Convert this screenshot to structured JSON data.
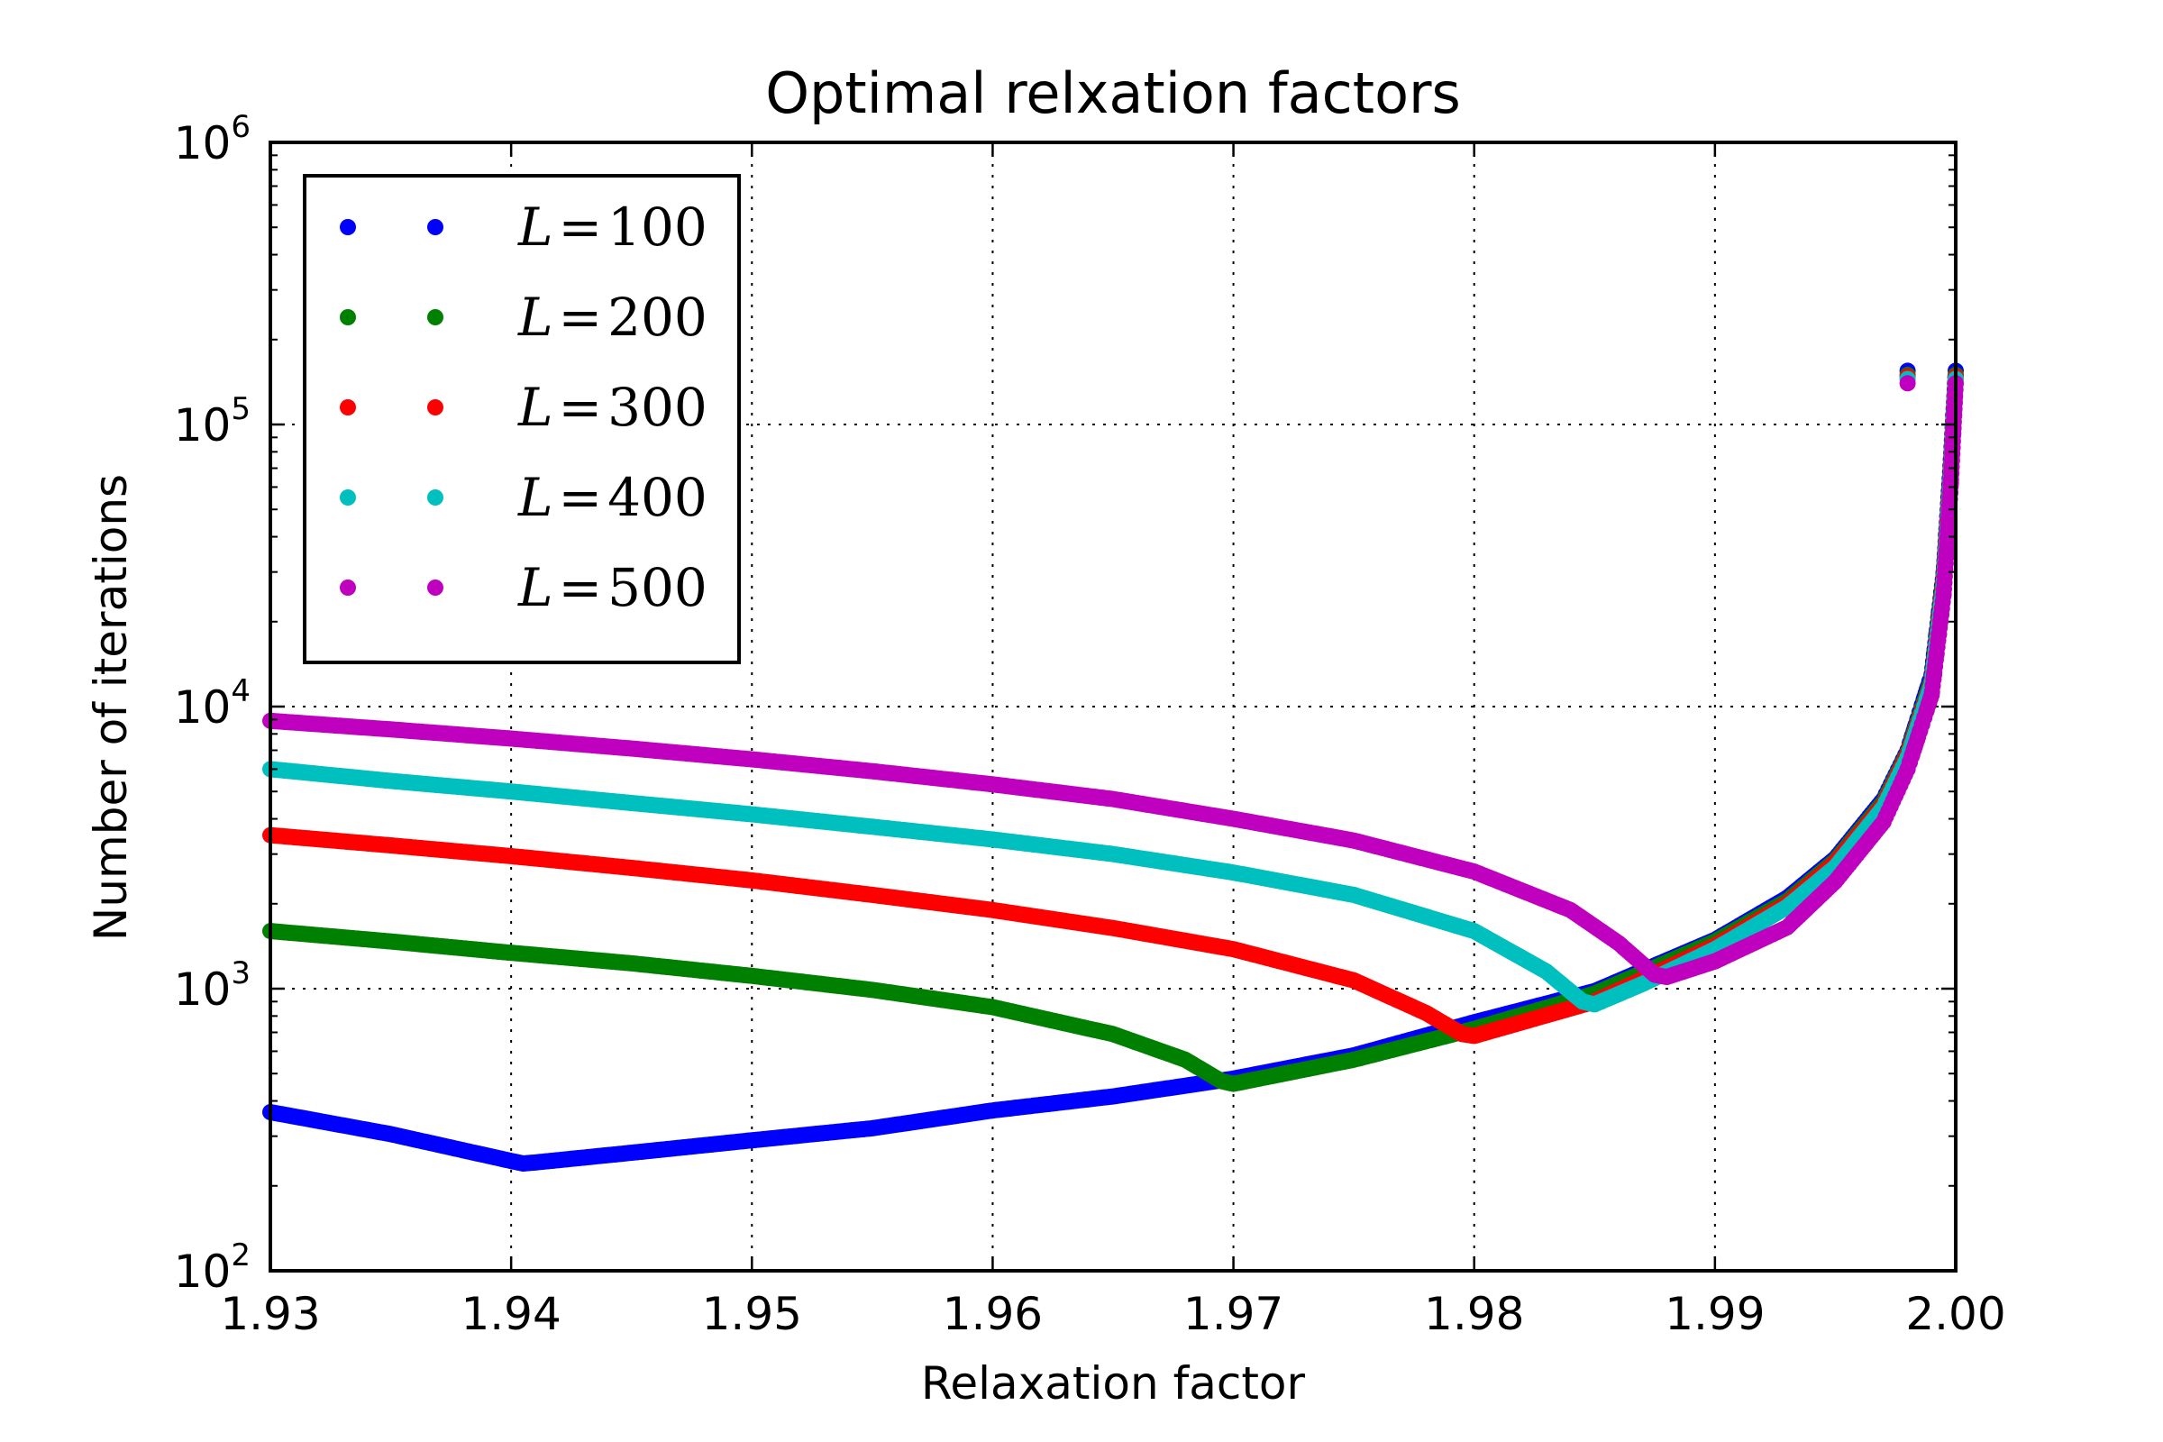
{
  "chart_data": {
    "type": "scatter",
    "title": "Optimal relxation factors",
    "xlabel": "Relaxation factor",
    "ylabel": "Number of iterations",
    "xlim": [
      1.93,
      2.0
    ],
    "ylim": [
      100,
      1000000
    ],
    "yscale": "log",
    "grid": true,
    "legend_position": "upper-left",
    "xticks": [
      1.93,
      1.94,
      1.95,
      1.96,
      1.97,
      1.98,
      1.99,
      2.0
    ],
    "xtick_labels": [
      "1.93",
      "1.94",
      "1.95",
      "1.96",
      "1.97",
      "1.98",
      "1.99",
      "2.00"
    ],
    "yticks": [
      100,
      1000,
      10000,
      100000,
      1000000
    ],
    "ytick_labels": [
      {
        "base": "10",
        "exp": "2"
      },
      {
        "base": "10",
        "exp": "3"
      },
      {
        "base": "10",
        "exp": "4"
      },
      {
        "base": "10",
        "exp": "5"
      },
      {
        "base": "10",
        "exp": "6"
      }
    ],
    "series": [
      {
        "name": "L = 100",
        "legend_var": "L",
        "legend_val": "100",
        "color": "#0000ff",
        "x": [
          1.93,
          1.935,
          1.94,
          1.9405,
          1.941,
          1.945,
          1.95,
          1.955,
          1.96,
          1.965,
          1.97,
          1.975,
          1.98,
          1.985,
          1.99,
          1.993,
          1.995,
          1.997,
          1.998,
          1.999,
          1.9995,
          1.9998,
          2.0
        ],
        "y": [
          365,
          305,
          245,
          240,
          242,
          262,
          290,
          320,
          370,
          415,
          480,
          580,
          760,
          980,
          1490,
          2100,
          2900,
          4700,
          7000,
          13000,
          30000,
          75000,
          155000
        ]
      },
      {
        "name": "L = 200",
        "legend_var": "L",
        "legend_val": "200",
        "color": "#008000",
        "x": [
          1.93,
          1.935,
          1.94,
          1.945,
          1.95,
          1.955,
          1.96,
          1.965,
          1.968,
          1.9695,
          1.97,
          1.975,
          1.98,
          1.985,
          1.99,
          1.993,
          1.995,
          1.997,
          1.998,
          1.999,
          1.9995,
          1.9998,
          2.0
        ],
        "y": [
          1600,
          1470,
          1340,
          1230,
          1110,
          990,
          860,
          690,
          560,
          470,
          460,
          560,
          720,
          960,
          1470,
          2050,
          2850,
          4600,
          6900,
          12500,
          29000,
          70000,
          150000
        ]
      },
      {
        "name": "L = 300",
        "legend_var": "L",
        "legend_val": "300",
        "color": "#ff0000",
        "x": [
          1.93,
          1.935,
          1.94,
          1.945,
          1.95,
          1.955,
          1.96,
          1.965,
          1.97,
          1.975,
          1.978,
          1.9795,
          1.98,
          1.985,
          1.99,
          1.993,
          1.995,
          1.997,
          1.998,
          1.999,
          1.9995,
          1.9998,
          2.0
        ],
        "y": [
          3500,
          3220,
          2950,
          2680,
          2420,
          2150,
          1900,
          1640,
          1380,
          1070,
          820,
          690,
          680,
          900,
          1420,
          2000,
          2800,
          4500,
          6800,
          12200,
          28000,
          68000,
          148000
        ]
      },
      {
        "name": "L = 400",
        "legend_var": "L",
        "legend_val": "400",
        "color": "#00bfbf",
        "x": [
          1.93,
          1.935,
          1.94,
          1.945,
          1.95,
          1.955,
          1.96,
          1.965,
          1.97,
          1.975,
          1.98,
          1.983,
          1.9845,
          1.985,
          1.987,
          1.99,
          1.993,
          1.995,
          1.997,
          1.998,
          1.999,
          1.9995,
          1.9998,
          2.0
        ],
        "y": [
          6000,
          5450,
          5000,
          4550,
          4150,
          3750,
          3380,
          3000,
          2580,
          2150,
          1600,
          1150,
          900,
          880,
          1040,
          1380,
          1950,
          2700,
          4400,
          6600,
          12000,
          27000,
          66000,
          145000
        ]
      },
      {
        "name": "L = 500",
        "legend_var": "L",
        "legend_val": "500",
        "color": "#bf00bf",
        "x": [
          1.93,
          1.935,
          1.94,
          1.945,
          1.95,
          1.955,
          1.96,
          1.965,
          1.97,
          1.975,
          1.98,
          1.984,
          1.986,
          1.9875,
          1.988,
          1.99,
          1.993,
          1.995,
          1.997,
          1.998,
          1.999,
          1.9995,
          1.9998,
          2.0
        ],
        "y": [
          8900,
          8300,
          7700,
          7100,
          6500,
          5900,
          5300,
          4700,
          4000,
          3350,
          2600,
          1900,
          1450,
          1120,
          1100,
          1250,
          1650,
          2400,
          3900,
          6000,
          11000,
          25000,
          62000,
          140000
        ]
      }
    ]
  }
}
